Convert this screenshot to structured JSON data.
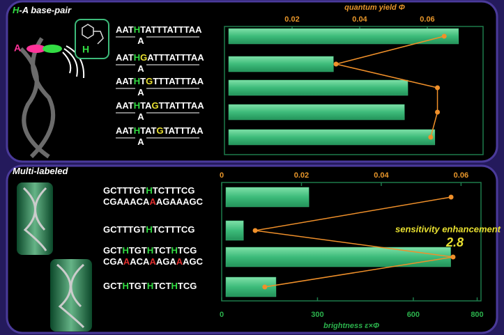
{
  "chart_data": [
    {
      "type": "bar",
      "orientation": "horizontal",
      "title": [
        {
          "text": "H",
          "color": "#33dd44"
        },
        {
          "text": "-A base-pair",
          "color": "#ffffff"
        }
      ],
      "figure_labels": [
        {
          "text": "A",
          "color": "#ff3399"
        },
        {
          "text": "H",
          "color": "#33dd44"
        }
      ],
      "x_label": "quantum yield Φ",
      "xlim": [
        0,
        0.0765
      ],
      "xticks": [
        0.02,
        0.04,
        0.06
      ],
      "labels": [
        [
          [
            {
              "text": "AAT"
            },
            {
              "text": "H",
              "color": "#33dd44"
            },
            {
              "text": "TATTTATTTAA"
            }
          ],
          [
            {
              "text": "A"
            }
          ]
        ],
        [
          [
            {
              "text": "AAT"
            },
            {
              "text": "H",
              "color": "#33dd44"
            },
            {
              "text": "G",
              "color": "#e8e030"
            },
            {
              "text": "ATTTATTTAA"
            }
          ],
          [
            {
              "text": "A"
            }
          ]
        ],
        [
          [
            {
              "text": "AAT"
            },
            {
              "text": "H",
              "color": "#33dd44"
            },
            {
              "text": "T"
            },
            {
              "text": "G",
              "color": "#e8e030"
            },
            {
              "text": "TTTATTTAA"
            }
          ],
          [
            {
              "text": "A"
            }
          ]
        ],
        [
          [
            {
              "text": "AAT"
            },
            {
              "text": "H",
              "color": "#33dd44"
            },
            {
              "text": "TA"
            },
            {
              "text": "G",
              "color": "#e8e030"
            },
            {
              "text": "TTATTTAA"
            }
          ],
          [
            {
              "text": "A"
            }
          ]
        ],
        [
          [
            {
              "text": "AAT"
            },
            {
              "text": "H",
              "color": "#33dd44"
            },
            {
              "text": "TAT"
            },
            {
              "text": "G",
              "color": "#e8e030"
            },
            {
              "text": "TATTTAA"
            }
          ],
          [
            {
              "text": "A"
            }
          ]
        ]
      ],
      "series": [
        {
          "type": "bar",
          "color": "#3dbb7a",
          "values": [
            0.068,
            0.031,
            0.053,
            0.052,
            0.061
          ]
        },
        {
          "type": "line",
          "color": "#f0902a",
          "values": [
            0.065,
            0.033,
            0.063,
            0.063,
            0.061
          ]
        }
      ]
    },
    {
      "type": "bar",
      "orientation": "horizontal",
      "title": [
        {
          "text": "Multi-labeled",
          "color": "#ffffff"
        }
      ],
      "x2_label": "brightness ε×Φ",
      "xlim": [
        0,
        0.065
      ],
      "xticks": [
        0,
        0.02,
        0.04,
        0.06
      ],
      "x2lim": [
        0,
        812
      ],
      "x2ticks": [
        0,
        300,
        600,
        800
      ],
      "labels": [
        [
          [
            {
              "text": "GCTTTGT"
            },
            {
              "text": "H",
              "color": "#33dd44"
            },
            {
              "text": "TCTTTCG"
            }
          ],
          [
            {
              "text": "CGAAACA"
            },
            {
              "text": "A",
              "color": "#e03030"
            },
            {
              "text": "AGAAAGC"
            }
          ]
        ],
        [
          [
            {
              "text": "GCTTTGT"
            },
            {
              "text": "H",
              "color": "#33dd44"
            },
            {
              "text": "TCTTTCG"
            }
          ]
        ],
        [
          [
            {
              "text": "GCT"
            },
            {
              "text": "H",
              "color": "#33dd44"
            },
            {
              "text": "TGT"
            },
            {
              "text": "H",
              "color": "#33dd44"
            },
            {
              "text": "TCT"
            },
            {
              "text": "H",
              "color": "#33dd44"
            },
            {
              "text": "TCG"
            }
          ],
          [
            {
              "text": "CGA"
            },
            {
              "text": "A",
              "color": "#e03030"
            },
            {
              "text": "ACA"
            },
            {
              "text": "A",
              "color": "#e03030"
            },
            {
              "text": "AGA"
            },
            {
              "text": "A",
              "color": "#e03030"
            },
            {
              "text": "AGC"
            }
          ]
        ],
        [
          [
            {
              "text": "GCT"
            },
            {
              "text": "H",
              "color": "#33dd44"
            },
            {
              "text": "TGT"
            },
            {
              "text": "H",
              "color": "#33dd44"
            },
            {
              "text": "TCT"
            },
            {
              "text": "H",
              "color": "#33dd44"
            },
            {
              "text": "TCG"
            }
          ]
        ]
      ],
      "series": [
        {
          "type": "bar",
          "axis": "x2",
          "color": "#3dbb7a",
          "values": [
            260,
            55,
            704,
            157
          ]
        },
        {
          "type": "line",
          "color": "#f0902a",
          "values": [
            0.0575,
            0.0084,
            0.058,
            0.0108
          ]
        }
      ],
      "annotations": [
        {
          "text": "sensitivity enhancement"
        },
        {
          "text": "2.8"
        }
      ]
    }
  ]
}
